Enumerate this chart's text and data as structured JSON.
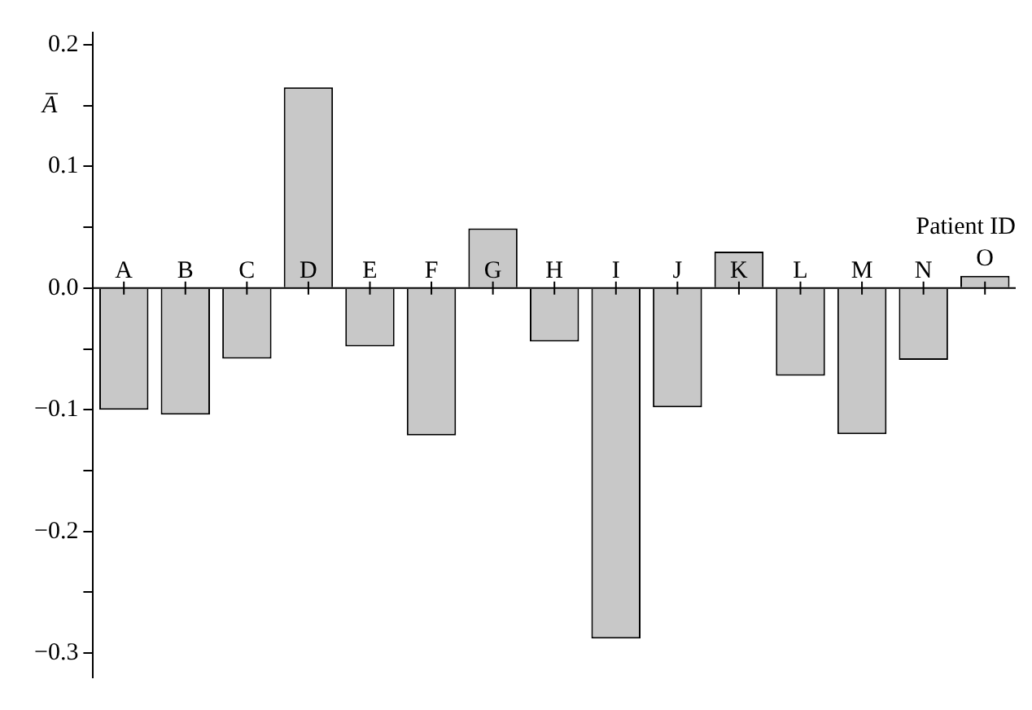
{
  "chart_data": {
    "type": "bar",
    "xlabel": "Patient ID",
    "ylabel": "A̅",
    "categories": [
      "A",
      "B",
      "C",
      "D",
      "E",
      "F",
      "G",
      "H",
      "I",
      "J",
      "K",
      "L",
      "M",
      "N",
      "O"
    ],
    "values": [
      -0.1,
      -0.104,
      -0.058,
      0.165,
      -0.048,
      -0.121,
      0.049,
      -0.044,
      -0.288,
      -0.098,
      0.03,
      -0.072,
      -0.12,
      -0.059,
      0.01
    ],
    "color": "#c8c8c8",
    "ylim": [
      -0.32,
      0.21
    ],
    "yticks": [
      {
        "value": -0.3,
        "label": "−0.3"
      },
      {
        "value": -0.25,
        "label": null
      },
      {
        "value": -0.2,
        "label": "−0.2"
      },
      {
        "value": -0.15,
        "label": null
      },
      {
        "value": -0.1,
        "label": "−0.1"
      },
      {
        "value": -0.05,
        "label": null
      },
      {
        "value": 0,
        "label": "0.0"
      },
      {
        "value": 0.05,
        "label": null
      },
      {
        "value": 0.1,
        "label": "0.1"
      },
      {
        "value": 0.15,
        "label": null
      },
      {
        "value": 0.2,
        "label": "0.2"
      }
    ],
    "grid": false,
    "legend": false
  }
}
